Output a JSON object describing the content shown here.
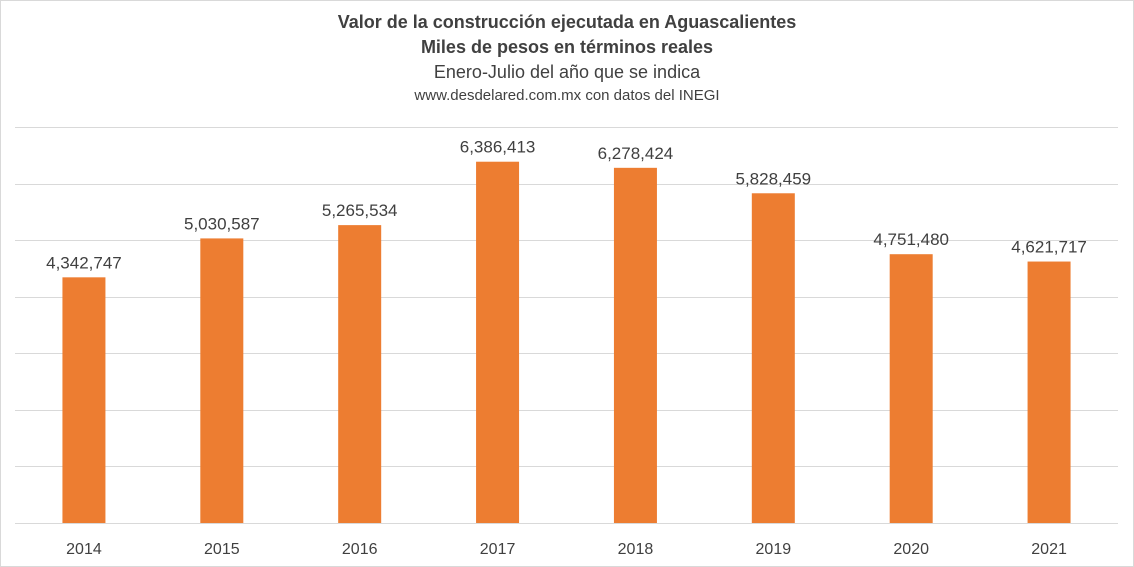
{
  "chart_data": {
    "type": "bar",
    "title": "Valor de la construcción ejecutada en Aguascalientes",
    "subtitle": "Miles de pesos en términos reales",
    "period": "Enero-Julio del año que se indica",
    "source": "www.desdelared.com.mx con datos del INEGI",
    "categories": [
      "2014",
      "2015",
      "2016",
      "2017",
      "2018",
      "2019",
      "2020",
      "2021"
    ],
    "values": [
      4342747,
      5030587,
      5265534,
      6386413,
      6278424,
      5828459,
      4751480,
      4621717
    ],
    "value_labels": [
      "4,342,747",
      "5,030,587",
      "5,265,534",
      "6,386,413",
      "6,278,424",
      "5,828,459",
      "4,751,480",
      "4,621,717"
    ],
    "ylim": [
      0,
      7000000
    ],
    "grid": true,
    "bar_color": "#ED7D31",
    "grid_color": "#D9D9D9"
  }
}
